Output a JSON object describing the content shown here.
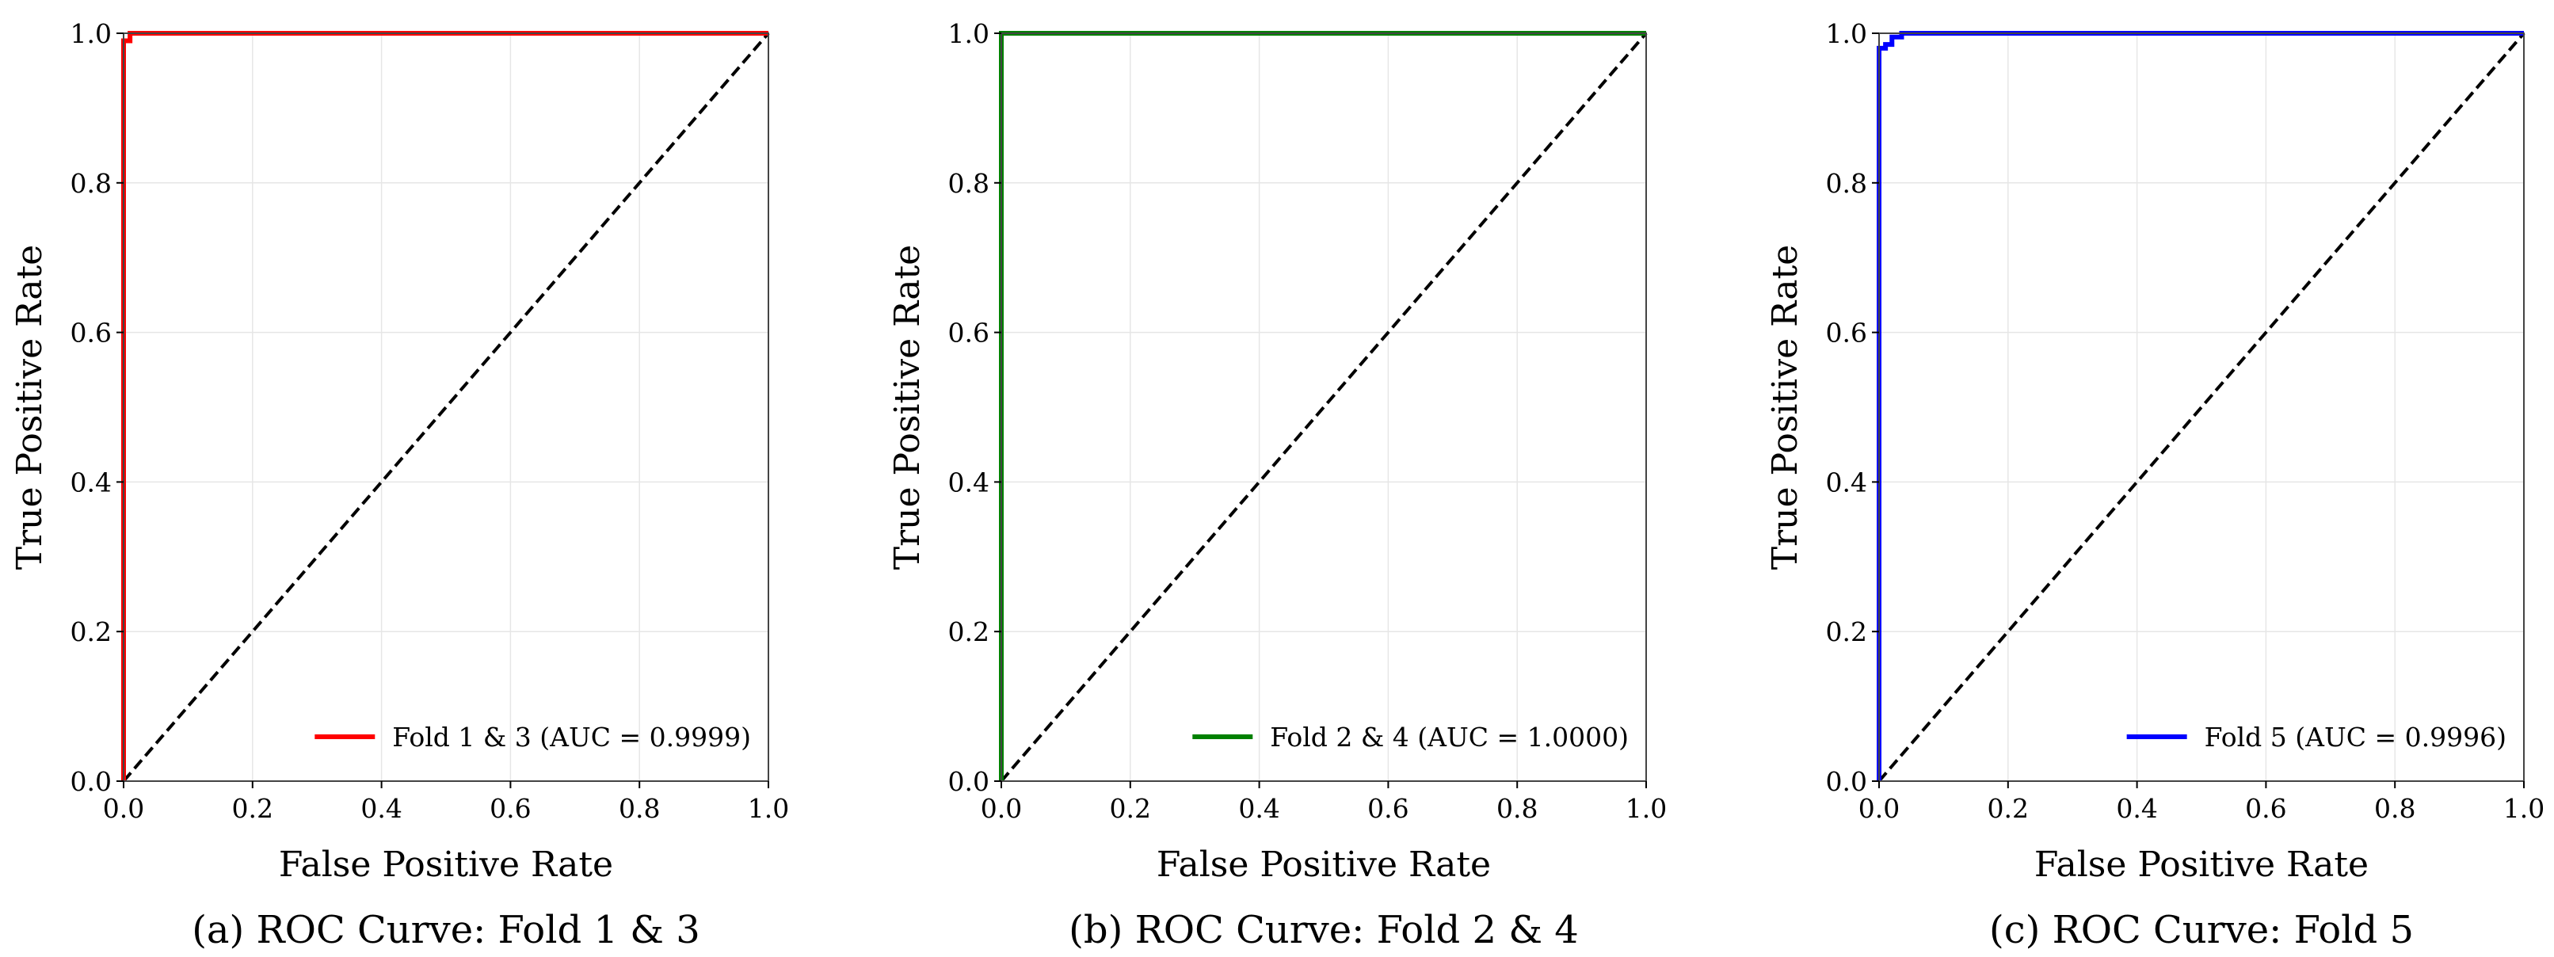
{
  "chart_data": [
    {
      "type": "line",
      "caption": "(a) ROC Curve: Fold 1 & 3",
      "xlabel": "False Positive Rate",
      "ylabel": "True Positive Rate",
      "xlim": [
        0.0,
        1.0
      ],
      "ylim": [
        0.0,
        1.0
      ],
      "xticks": [
        "0.0",
        "0.2",
        "0.4",
        "0.6",
        "0.8",
        "1.0"
      ],
      "yticks": [
        "0.0",
        "0.2",
        "0.4",
        "0.6",
        "0.8",
        "1.0"
      ],
      "grid": true,
      "legend_position": "lower-right",
      "series": [
        {
          "name": "Fold 1 & 3 (AUC = 0.9999)",
          "color": "#ff0000",
          "x": [
            0.0,
            0.0,
            0.0,
            0.01,
            0.01,
            1.0
          ],
          "y": [
            0.0,
            0.99,
            0.99,
            0.99,
            1.0,
            1.0
          ]
        }
      ],
      "reference_line": {
        "color": "#000000",
        "style": "dashed",
        "x": [
          0,
          1
        ],
        "y": [
          0,
          1
        ]
      }
    },
    {
      "type": "line",
      "caption": "(b) ROC Curve: Fold 2 & 4",
      "xlabel": "False Positive Rate",
      "ylabel": "True Positive Rate",
      "xlim": [
        0.0,
        1.0
      ],
      "ylim": [
        0.0,
        1.0
      ],
      "xticks": [
        "0.0",
        "0.2",
        "0.4",
        "0.6",
        "0.8",
        "1.0"
      ],
      "yticks": [
        "0.0",
        "0.2",
        "0.4",
        "0.6",
        "0.8",
        "1.0"
      ],
      "grid": true,
      "legend_position": "lower-right",
      "series": [
        {
          "name": "Fold 2 & 4 (AUC = 1.0000)",
          "color": "#008000",
          "x": [
            0.0,
            0.0,
            1.0
          ],
          "y": [
            0.0,
            1.0,
            1.0
          ]
        }
      ],
      "reference_line": {
        "color": "#000000",
        "style": "dashed",
        "x": [
          0,
          1
        ],
        "y": [
          0,
          1
        ]
      }
    },
    {
      "type": "line",
      "caption": "(c) ROC Curve: Fold 5",
      "xlabel": "False Positive Rate",
      "ylabel": "True Positive Rate",
      "xlim": [
        0.0,
        1.0
      ],
      "ylim": [
        0.0,
        1.0
      ],
      "xticks": [
        "0.0",
        "0.2",
        "0.4",
        "0.6",
        "0.8",
        "1.0"
      ],
      "yticks": [
        "0.0",
        "0.2",
        "0.4",
        "0.6",
        "0.8",
        "1.0"
      ],
      "grid": true,
      "legend_position": "lower-right",
      "series": [
        {
          "name": "Fold 5 (AUC = 0.9996)",
          "color": "#0000ff",
          "x": [
            0.0,
            0.0,
            0.01,
            0.01,
            0.02,
            0.02,
            0.035,
            0.035,
            1.0
          ],
          "y": [
            0.0,
            0.98,
            0.98,
            0.985,
            0.985,
            0.995,
            0.995,
            1.0,
            1.0
          ]
        }
      ],
      "reference_line": {
        "color": "#000000",
        "style": "dashed",
        "x": [
          0,
          1
        ],
        "y": [
          0,
          1
        ]
      }
    }
  ]
}
